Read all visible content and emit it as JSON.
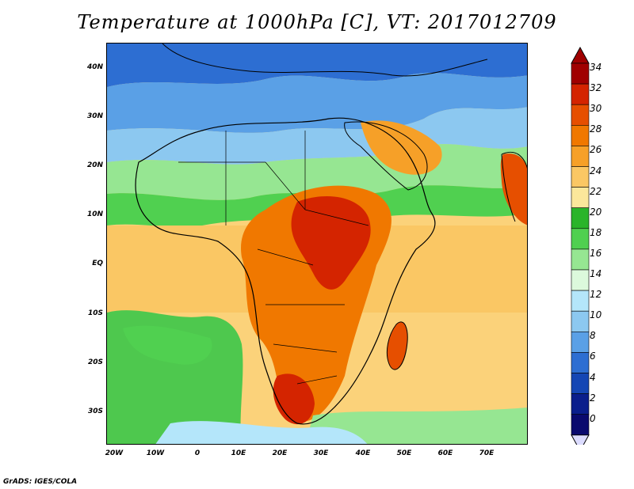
{
  "title": "Temperature at 1000hPa [C], VT: 2017012709",
  "credit": "GrADS: IGES/COLA",
  "lat_labels": [
    "40N",
    "30N",
    "20N",
    "10N",
    "EQ",
    "10S",
    "20S",
    "30S"
  ],
  "lon_labels": [
    "20W",
    "10W",
    "0",
    "10E",
    "20E",
    "30E",
    "40E",
    "50E",
    "60E",
    "70E"
  ],
  "colorbar": {
    "labels": [
      "34",
      "32",
      "30",
      "28",
      "26",
      "24",
      "22",
      "20",
      "18",
      "16",
      "14",
      "12",
      "10",
      "8",
      "6",
      "4",
      "2",
      "0"
    ],
    "colors": [
      "#a00000",
      "#d42400",
      "#e64f00",
      "#f07800",
      "#f6a028",
      "#fac764",
      "#fbe79b",
      "#2ab42a",
      "#50d050",
      "#96e692",
      "#dcf9dc",
      "#b4e6fa",
      "#8cc8f0",
      "#5aa0e6",
      "#2d6ed2",
      "#1446b4",
      "#0a1e8c",
      "#0a0a6e"
    ],
    "under_color": "#dcdcff",
    "over_color": "#a00000"
  },
  "map": {
    "ocean_warm": "#f6b048",
    "ocean_mid": "#fbd27a",
    "south_atlantic": "#4ec84e",
    "north_cold": "#8cc8f0",
    "europe": "#2d6ed2"
  }
}
